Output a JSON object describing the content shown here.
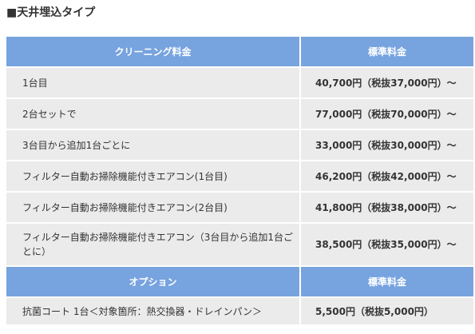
{
  "page_title": "■天井埋込タイプ",
  "cleaning_section": {
    "header_item": "クリーニング料金",
    "header_price": "標準料金",
    "rows": [
      {
        "item": "1台目",
        "price": "40,700円（税抜37,000円）～"
      },
      {
        "item": "2台セットで",
        "price": "77,000円（税抜70,000円）～"
      },
      {
        "item": "3台目から追加1台ごとに",
        "price": "33,000円（税抜30,000円）～"
      },
      {
        "item": "フィルター自動お掃除機能付きエアコン(1台目)",
        "price": "46,200円（税抜42,000円）～"
      },
      {
        "item": "フィルター自動お掃除機能付きエアコン(2台目)",
        "price": "41,800円（税抜38,000円）～"
      },
      {
        "item": "フィルター自動お掃除機能付きエアコン（3台目から追加1台ごとに）",
        "price": "38,500円（税抜35,000円）～"
      }
    ]
  },
  "option_section": {
    "header_item": "オプション",
    "header_price": "標準料金",
    "rows": [
      {
        "item": "抗菌コート 1台＜対象箇所：熱交換器・ドレインパン＞",
        "price": "5,500円（税抜5,000円）"
      }
    ]
  }
}
